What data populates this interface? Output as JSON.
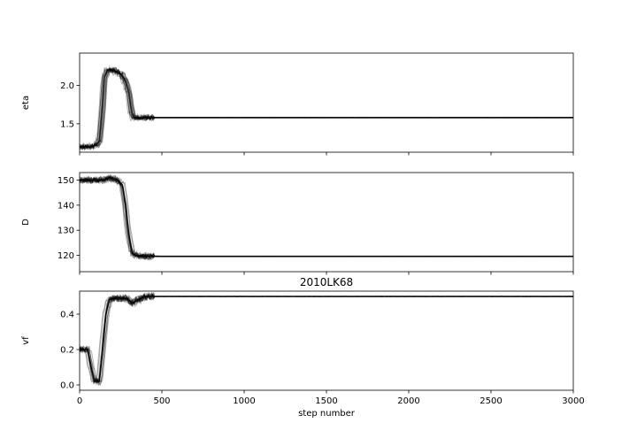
{
  "title": "2010LK68",
  "chart_data": {
    "type": "line",
    "description_of_series": "multiple MCMC walker traces per panel, drawn semi-transparent black",
    "xlabel": "step number",
    "xlim": [
      0,
      3000
    ],
    "xticks": [
      0,
      500,
      1000,
      1500,
      2000,
      2500,
      3000
    ],
    "panels": [
      {
        "ylabel": "eta",
        "ylim": [
          1.13,
          2.42
        ],
        "yticks": [
          1.5,
          2.0
        ],
        "yticklabels": [
          "1.5",
          "2.0"
        ],
        "trace_keypoints": {
          "x": [
            0,
            60,
            100,
            120,
            135,
            150,
            170,
            200,
            250,
            280,
            300,
            315,
            330,
            400,
            500,
            3000
          ],
          "y": [
            1.2,
            1.2,
            1.22,
            1.28,
            1.6,
            2.1,
            2.2,
            2.2,
            2.15,
            2.05,
            1.9,
            1.65,
            1.58,
            1.58,
            1.58,
            1.58
          ]
        }
      },
      {
        "ylabel": "D",
        "ylim": [
          113.5,
          153
        ],
        "yticks": [
          120,
          130,
          140,
          150
        ],
        "yticklabels": [
          "120",
          "130",
          "140",
          "150"
        ],
        "trace_keypoints": {
          "x": [
            0,
            150,
            180,
            230,
            260,
            280,
            295,
            310,
            320,
            340,
            400,
            500,
            3000
          ],
          "y": [
            150,
            150,
            151,
            150,
            148,
            140,
            130,
            124,
            121,
            120,
            119.7,
            119.6,
            119.6
          ]
        }
      },
      {
        "ylabel": "vf",
        "ylim": [
          -0.03,
          0.53
        ],
        "yticks": [
          0.0,
          0.2,
          0.4
        ],
        "yticklabels": [
          "0.0",
          "0.2",
          "0.4"
        ],
        "trace_keypoints": {
          "x": [
            0,
            50,
            70,
            90,
            120,
            140,
            160,
            180,
            200,
            240,
            290,
            320,
            350,
            400,
            500,
            3000
          ],
          "y": [
            0.2,
            0.2,
            0.1,
            0.02,
            0.02,
            0.2,
            0.4,
            0.48,
            0.49,
            0.49,
            0.49,
            0.46,
            0.48,
            0.5,
            0.5,
            0.5
          ]
        }
      }
    ]
  }
}
